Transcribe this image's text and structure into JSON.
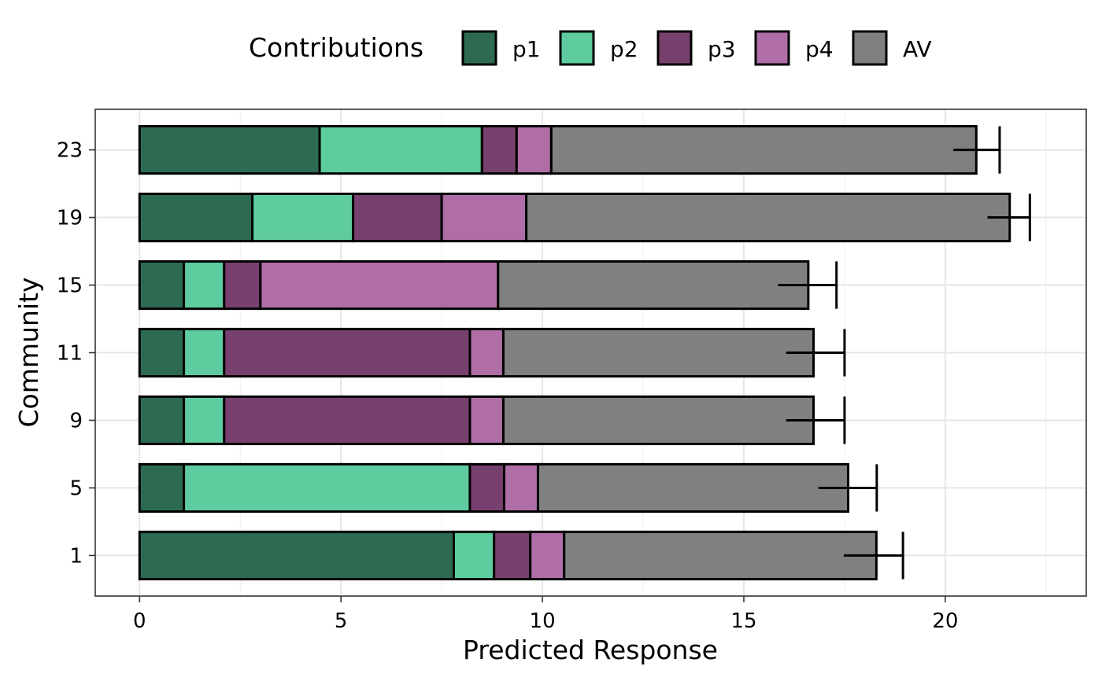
{
  "chart_data": {
    "type": "bar",
    "orientation": "horizontal",
    "stacked": true,
    "categories": [
      "1",
      "5",
      "9",
      "11",
      "15",
      "19",
      "23"
    ],
    "xlabel": "Predicted Response",
    "ylabel": "Community",
    "xlim": [
      -1.1,
      23.5
    ],
    "x_ticks": [
      0,
      5,
      10,
      15,
      20
    ],
    "grid": true,
    "legend": {
      "title": "Contributions",
      "position": "top"
    },
    "series": [
      {
        "name": "p1",
        "color": "#2d6a52",
        "values": [
          7.8,
          1.1,
          1.1,
          1.1,
          1.1,
          2.8,
          4.47
        ]
      },
      {
        "name": "p2",
        "color": "#5ecc9f",
        "values": [
          1.0,
          7.1,
          1.0,
          1.0,
          1.0,
          2.5,
          4.03
        ]
      },
      {
        "name": "p3",
        "color": "#78406e",
        "values": [
          0.9,
          0.85,
          6.1,
          6.1,
          0.9,
          2.2,
          0.86
        ]
      },
      {
        "name": "p4",
        "color": "#b06ea6",
        "values": [
          0.84,
          0.84,
          0.83,
          0.83,
          5.9,
          2.1,
          0.86
        ]
      },
      {
        "name": "AV",
        "color": "#808080",
        "values": [
          7.75,
          7.7,
          7.7,
          7.7,
          7.7,
          12.0,
          10.55
        ]
      }
    ],
    "error_bars": {
      "center": [
        17.48,
        16.85,
        16.05,
        16.05,
        15.85,
        21.05,
        20.2
      ],
      "upper": [
        18.95,
        18.3,
        17.5,
        17.5,
        17.3,
        22.1,
        21.35
      ]
    }
  }
}
